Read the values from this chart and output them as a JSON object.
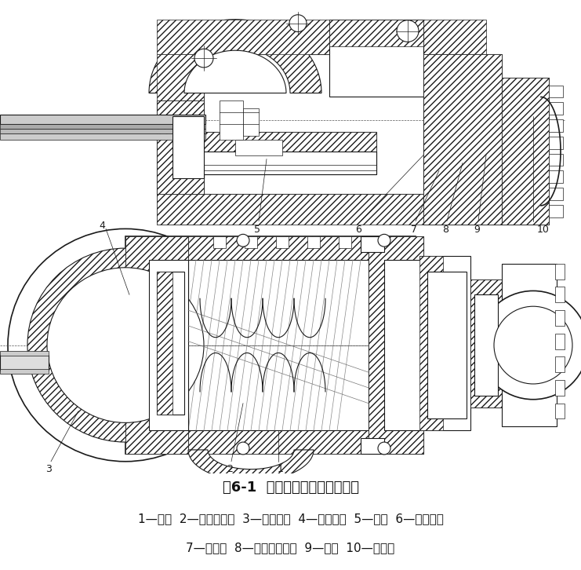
{
  "title": "图6-1  螺杆式制冷压缩机剖面图",
  "caption_line1": "1—机体  2—阴、阳转子  3—吸气端座  4—平衡活塞  5—滑阀  6—排气端座",
  "caption_line2": "7—主轴承  8—径向止推轴承  9—轴封  10—联轴器",
  "title_fontsize": 13,
  "caption_fontsize": 11,
  "fig_width": 7.41,
  "fig_height": 7.26,
  "dpi": 100,
  "lc": "#1a1a1a",
  "hatch_color": "#2a2a2a",
  "bg": "white"
}
